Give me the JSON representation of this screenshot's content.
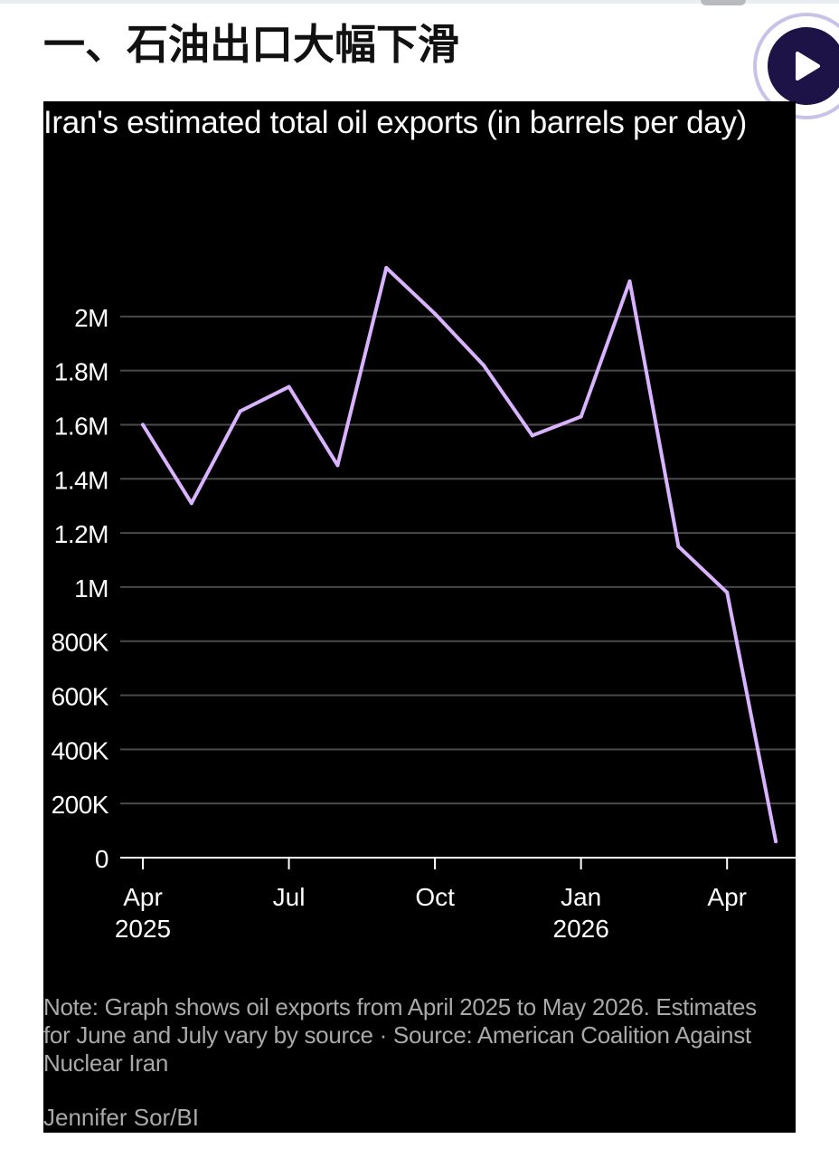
{
  "page": {
    "section_heading": "一、石油出口大幅下滑",
    "play_button_icon": "play-icon"
  },
  "colors": {
    "chart_background": "#000000",
    "line": "#d9b3ff",
    "gridline": "#4a4a4a",
    "axis_text": "#ffffff",
    "note_text": "#a9a9a9",
    "play_button": "#1d1346"
  },
  "chart_data": {
    "type": "line",
    "title": "Iran's estimated total oil exports (in barrels per day)",
    "xlabel": "",
    "ylabel": "",
    "x": [
      "2025-04",
      "2025-05",
      "2025-06",
      "2025-07",
      "2025-08",
      "2025-09",
      "2025-10",
      "2025-11",
      "2025-12",
      "2026-01",
      "2026-02",
      "2026-03",
      "2026-04",
      "2026-05"
    ],
    "series": [
      {
        "values": [
          1600000,
          1310000,
          1650000,
          1740000,
          1450000,
          2180000,
          2010000,
          1820000,
          1560000,
          1630000,
          2130000,
          1150000,
          980000,
          60000
        ]
      }
    ],
    "ylim": [
      0,
      2200000
    ],
    "y_ticks": [
      {
        "value": 0,
        "label": "0"
      },
      {
        "value": 200000,
        "label": "200K"
      },
      {
        "value": 400000,
        "label": "400K"
      },
      {
        "value": 600000,
        "label": "600K"
      },
      {
        "value": 800000,
        "label": "800K"
      },
      {
        "value": 1000000,
        "label": "1M"
      },
      {
        "value": 1200000,
        "label": "1.2M"
      },
      {
        "value": 1400000,
        "label": "1.4M"
      },
      {
        "value": 1600000,
        "label": "1.6M"
      },
      {
        "value": 1800000,
        "label": "1.8M"
      },
      {
        "value": 2000000,
        "label": "2M"
      }
    ],
    "x_ticks": [
      {
        "value": "2025-04",
        "label": "Apr",
        "sublabel": "2025"
      },
      {
        "value": "2025-07",
        "label": "Jul",
        "sublabel": ""
      },
      {
        "value": "2025-10",
        "label": "Oct",
        "sublabel": ""
      },
      {
        "value": "2026-01",
        "label": "Jan",
        "sublabel": "2026"
      },
      {
        "value": "2026-04",
        "label": "Apr",
        "sublabel": ""
      }
    ],
    "grid": "horizontal",
    "legend": "none",
    "note": "Note: Graph shows oil exports from April 2025 to May 2026. Estimates for June and July vary by source · Source: American Coalition Against Nuclear Iran",
    "credit": "Jennifer Sor/BI"
  }
}
